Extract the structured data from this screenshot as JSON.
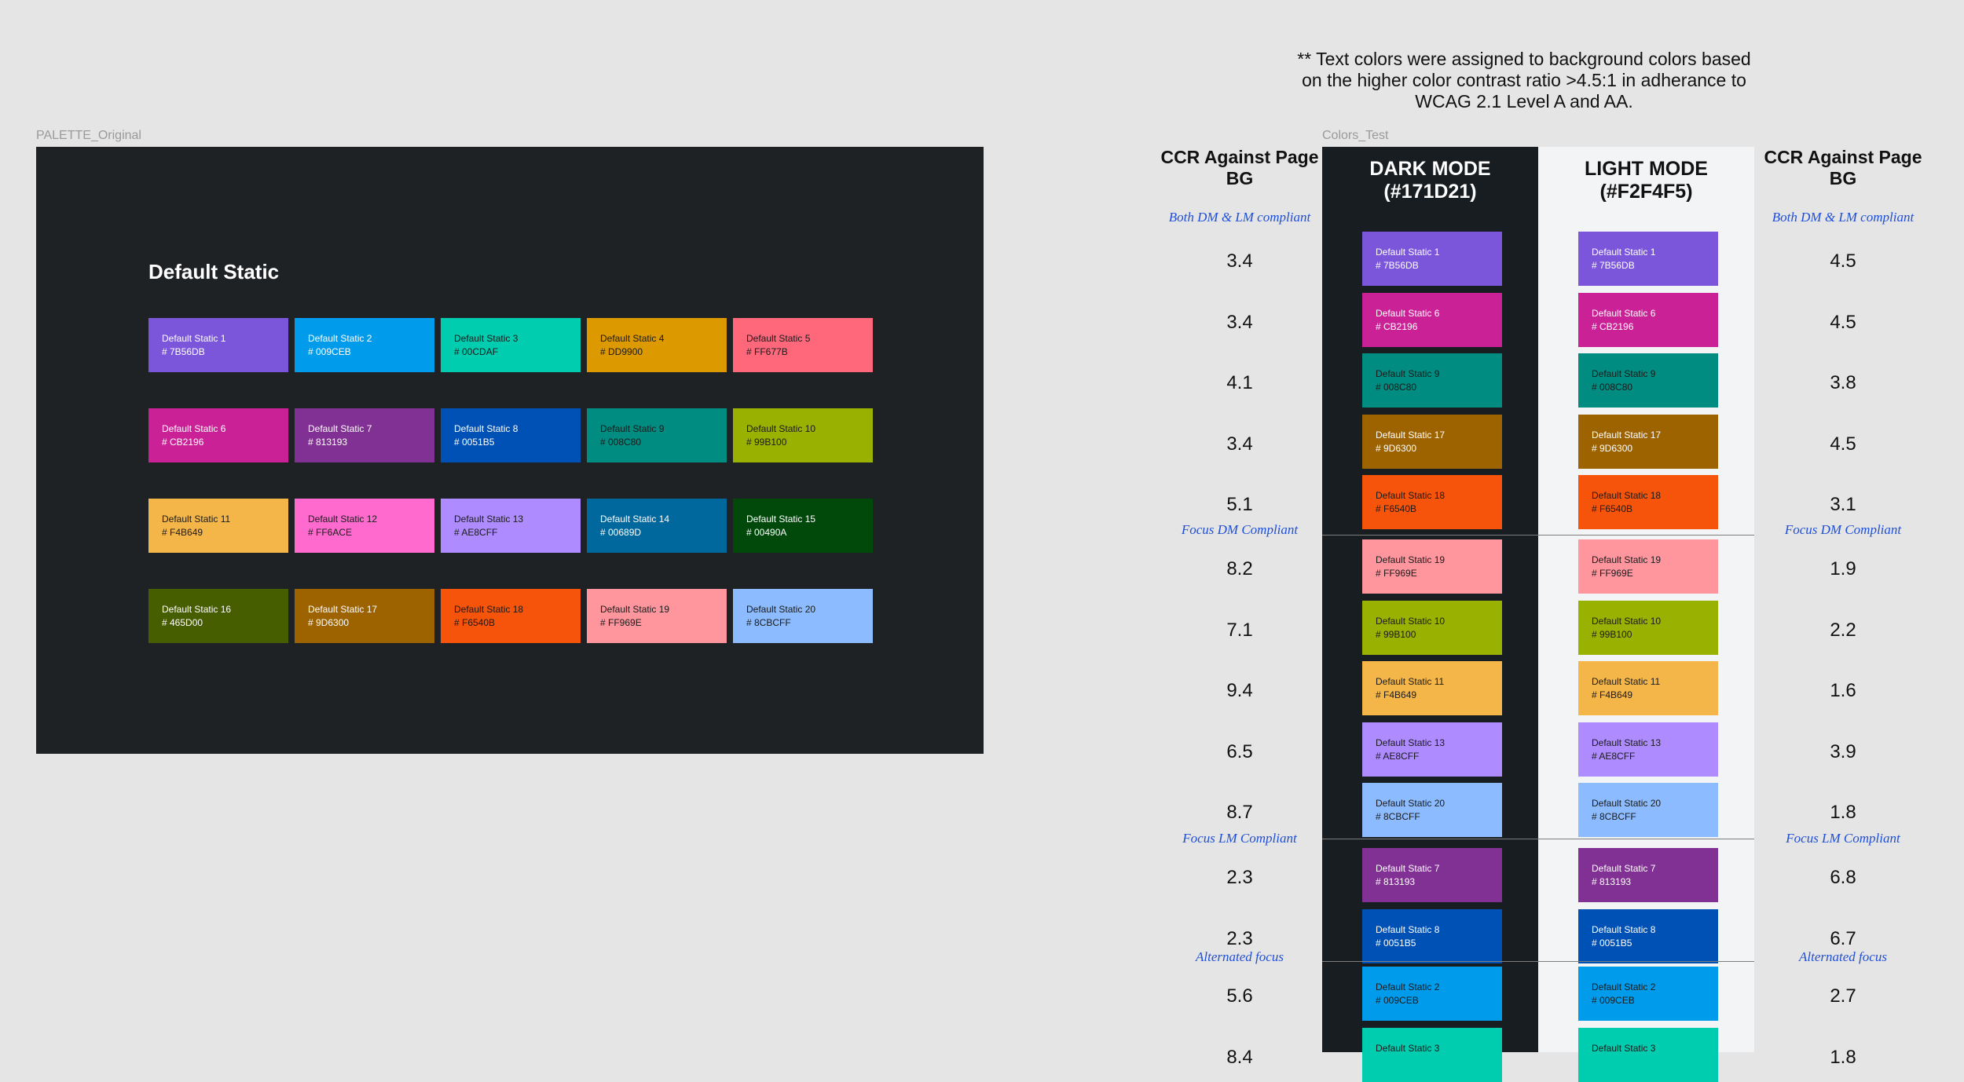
{
  "palette": {
    "frame_label": "PALETTE_Original",
    "title": "Default Static",
    "swatches": [
      {
        "name": "Default Static 1",
        "hex": "# 7B56DB",
        "bg": "#7B56DB",
        "fg": "#ffffff"
      },
      {
        "name": "Default Static 2",
        "hex": "# 009CEB",
        "bg": "#009CEB",
        "fg": "#ffffff"
      },
      {
        "name": "Default Static 3",
        "hex": "# 00CDAF",
        "bg": "#00CDAF",
        "fg": "#1a1a1a"
      },
      {
        "name": "Default Static 4",
        "hex": "# DD9900",
        "bg": "#DD9900",
        "fg": "#1a1a1a"
      },
      {
        "name": "Default Static 5",
        "hex": "# FF677B",
        "bg": "#FF677B",
        "fg": "#1a1a1a"
      },
      {
        "name": "Default Static 6",
        "hex": "# CB2196",
        "bg": "#CB2196",
        "fg": "#ffffff"
      },
      {
        "name": "Default Static 7",
        "hex": "# 813193",
        "bg": "#813193",
        "fg": "#ffffff"
      },
      {
        "name": "Default Static 8",
        "hex": "# 0051B5",
        "bg": "#0051B5",
        "fg": "#ffffff"
      },
      {
        "name": "Default Static 9",
        "hex": "# 008C80",
        "bg": "#008C80",
        "fg": "#1a1a1a"
      },
      {
        "name": "Default Static 10",
        "hex": "# 99B100",
        "bg": "#99B100",
        "fg": "#1a1a1a"
      },
      {
        "name": "Default Static 11",
        "hex": "# F4B649",
        "bg": "#F4B649",
        "fg": "#1a1a1a"
      },
      {
        "name": "Default Static 12",
        "hex": "# FF6ACE",
        "bg": "#FF6ACE",
        "fg": "#1a1a1a"
      },
      {
        "name": "Default Static 13",
        "hex": "# AE8CFF",
        "bg": "#AE8CFF",
        "fg": "#1a1a1a"
      },
      {
        "name": "Default Static 14",
        "hex": "# 00689D",
        "bg": "#00689D",
        "fg": "#ffffff"
      },
      {
        "name": "Default Static 15",
        "hex": "# 00490A",
        "bg": "#00490A",
        "fg": "#ffffff"
      },
      {
        "name": "Default Static 16",
        "hex": "# 465D00",
        "bg": "#465D00",
        "fg": "#ffffff"
      },
      {
        "name": "Default Static 17",
        "hex": "# 9D6300",
        "bg": "#9D6300",
        "fg": "#ffffff"
      },
      {
        "name": "Default Static 18",
        "hex": "# F6540B",
        "bg": "#F6540B",
        "fg": "#1a1a1a"
      },
      {
        "name": "Default Static 19",
        "hex": "# FF969E",
        "bg": "#FF969E",
        "fg": "#1a1a1a"
      },
      {
        "name": "Default Static 20",
        "hex": "# 8CBCFF",
        "bg": "#8CBCFF",
        "fg": "#1a1a1a"
      }
    ]
  },
  "colors_test": {
    "frame_label": "Colors_Test",
    "note": "** Text colors were assigned to background colors based on the higher color contrast ratio >4.5:1 in adherance to WCAG 2.1 Level A and AA.",
    "dark_title": "DARK MODE (#171D21)",
    "light_title": "LIGHT MODE (#F2F4F5)",
    "ccr_header": "CCR Against Page BG",
    "dark_bg": "#171D21",
    "light_bg": "#F2F4F5",
    "sections": [
      {
        "label": "Both DM & LM compliant",
        "items": [
          {
            "name": "Default Static 1",
            "hex": "# 7B56DB",
            "bg": "#7B56DB",
            "fg": "#ffffff",
            "dm": "3.4",
            "lm": "4.5"
          },
          {
            "name": "Default Static 6",
            "hex": "# CB2196",
            "bg": "#CB2196",
            "fg": "#ffffff",
            "dm": "3.4",
            "lm": "4.5"
          },
          {
            "name": "Default Static 9",
            "hex": "# 008C80",
            "bg": "#008C80",
            "fg": "#1a1a1a",
            "dm": "4.1",
            "lm": "3.8"
          },
          {
            "name": "Default Static 17",
            "hex": "# 9D6300",
            "bg": "#9D6300",
            "fg": "#ffffff",
            "dm": "3.4",
            "lm": "4.5"
          },
          {
            "name": "Default Static 18",
            "hex": "# F6540B",
            "bg": "#F6540B",
            "fg": "#1a1a1a",
            "dm": "5.1",
            "lm": "3.1"
          }
        ]
      },
      {
        "label": "Focus DM Compliant",
        "items": [
          {
            "name": "Default Static 19",
            "hex": "# FF969E",
            "bg": "#FF969E",
            "fg": "#1a1a1a",
            "dm": "8.2",
            "lm": "1.9"
          },
          {
            "name": "Default Static 10",
            "hex": "# 99B100",
            "bg": "#99B100",
            "fg": "#1a1a1a",
            "dm": "7.1",
            "lm": "2.2"
          },
          {
            "name": "Default Static 11",
            "hex": "# F4B649",
            "bg": "#F4B649",
            "fg": "#1a1a1a",
            "dm": "9.4",
            "lm": "1.6"
          },
          {
            "name": "Default Static 13",
            "hex": "# AE8CFF",
            "bg": "#AE8CFF",
            "fg": "#1a1a1a",
            "dm": "6.5",
            "lm": "3.9"
          },
          {
            "name": "Default Static 20",
            "hex": "# 8CBCFF",
            "bg": "#8CBCFF",
            "fg": "#1a1a1a",
            "dm": "8.7",
            "lm": "1.8"
          }
        ]
      },
      {
        "label": "Focus LM Compliant",
        "items": [
          {
            "name": "Default Static 7",
            "hex": "# 813193",
            "bg": "#813193",
            "fg": "#ffffff",
            "dm": "2.3",
            "lm": "6.8"
          },
          {
            "name": "Default Static 8",
            "hex": "# 0051B5",
            "bg": "#0051B5",
            "fg": "#ffffff",
            "dm": "2.3",
            "lm": "6.7"
          }
        ]
      },
      {
        "label": "Alternated focus",
        "items": [
          {
            "name": "Default Static 2",
            "hex": "# 009CEB",
            "bg": "#009CEB",
            "fg": "#1a1a1a",
            "dm": "5.6",
            "lm": "2.7"
          },
          {
            "name": "Default Static 3",
            "hex": "",
            "bg": "#00CDAF",
            "fg": "#1a1a1a",
            "dm": "8.4",
            "lm": "1.8"
          }
        ]
      }
    ]
  }
}
